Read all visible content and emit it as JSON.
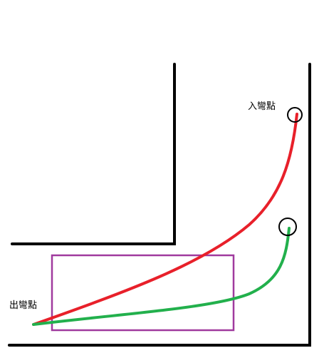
{
  "labels": {
    "entry_point": "入彎點",
    "exit_point": "出彎點"
  },
  "colors": {
    "wall": "#000000",
    "red_line": "#e8202a",
    "green_line": "#22b04c",
    "box": "#a03a9e",
    "marker": "#000000"
  }
}
